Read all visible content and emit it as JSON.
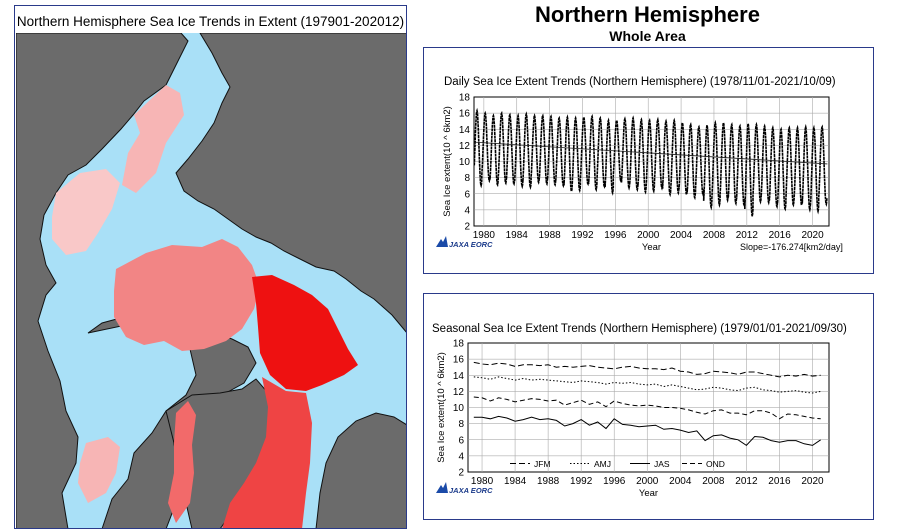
{
  "map": {
    "title": "Northern Hemisphere Sea Ice Trends in Extent (197901-202012)",
    "colors": {
      "ocean": "#a9e0f7",
      "land": "#6b6b6b",
      "trend_light": "#f7b5b5",
      "trend_medium": "#f28585",
      "trend_strong": "#ef4444",
      "trend_max": "#ee1111"
    }
  },
  "header": {
    "title": "Northern Hemisphere",
    "subtitle": "Whole Area"
  },
  "chart_data": [
    {
      "type": "line",
      "title": "Daily Sea Ice Extent Trends (Northern Hemisphere) (1978/11/01-2021/10/09)",
      "ylabel": "Sea Ice extent(10 ^ 6km2)",
      "xlabel": "Year",
      "ylim": [
        2,
        18
      ],
      "yticks": [
        "2",
        "4",
        "6",
        "8",
        "10",
        "12",
        "14",
        "16",
        "18"
      ],
      "xlim": [
        1978.8,
        2022.0
      ],
      "xticks": [
        "1980",
        "1984",
        "1988",
        "1992",
        "1996",
        "2000",
        "2004",
        "2008",
        "2012",
        "2016",
        "2020"
      ],
      "grid": true,
      "slope_label": "Slope=-176.274[km2/day]",
      "credit": "JAXA EORC",
      "annual_max": [
        [
          1979,
          16.3
        ],
        [
          1980,
          16.0
        ],
        [
          1981,
          15.7
        ],
        [
          1982,
          16.0
        ],
        [
          1983,
          15.8
        ],
        [
          1984,
          15.7
        ],
        [
          1985,
          15.9
        ],
        [
          1986,
          15.7
        ],
        [
          1987,
          15.7
        ],
        [
          1988,
          15.6
        ],
        [
          1989,
          15.4
        ],
        [
          1990,
          15.5
        ],
        [
          1991,
          15.4
        ],
        [
          1992,
          15.5
        ],
        [
          1993,
          15.6
        ],
        [
          1994,
          15.4
        ],
        [
          1995,
          15.1
        ],
        [
          1996,
          15.1
        ],
        [
          1997,
          15.3
        ],
        [
          1998,
          15.4
        ],
        [
          1999,
          15.2
        ],
        [
          2000,
          15.1
        ],
        [
          2001,
          15.2
        ],
        [
          2002,
          15.0
        ],
        [
          2003,
          15.1
        ],
        [
          2004,
          14.8
        ],
        [
          2005,
          14.6
        ],
        [
          2006,
          14.3
        ],
        [
          2007,
          14.5
        ],
        [
          2008,
          14.8
        ],
        [
          2009,
          14.8
        ],
        [
          2010,
          14.6
        ],
        [
          2011,
          14.4
        ],
        [
          2012,
          14.7
        ],
        [
          2013,
          14.6
        ],
        [
          2014,
          14.4
        ],
        [
          2015,
          14.2
        ],
        [
          2016,
          14.0
        ],
        [
          2017,
          14.2
        ],
        [
          2018,
          14.2
        ],
        [
          2019,
          14.3
        ],
        [
          2020,
          14.2
        ],
        [
          2021,
          14.3
        ]
      ],
      "annual_min": [
        [
          1979,
          7.0
        ],
        [
          1980,
          7.6
        ],
        [
          1981,
          7.1
        ],
        [
          1982,
          7.3
        ],
        [
          1983,
          7.2
        ],
        [
          1984,
          6.9
        ],
        [
          1985,
          6.8
        ],
        [
          1986,
          7.4
        ],
        [
          1987,
          7.2
        ],
        [
          1988,
          7.1
        ],
        [
          1989,
          7.0
        ],
        [
          1990,
          6.3
        ],
        [
          1991,
          6.4
        ],
        [
          1992,
          7.2
        ],
        [
          1993,
          6.5
        ],
        [
          1994,
          6.9
        ],
        [
          1995,
          6.1
        ],
        [
          1996,
          7.6
        ],
        [
          1997,
          6.7
        ],
        [
          1998,
          6.5
        ],
        [
          1999,
          6.2
        ],
        [
          2000,
          6.3
        ],
        [
          2001,
          6.7
        ],
        [
          2002,
          5.9
        ],
        [
          2003,
          6.1
        ],
        [
          2004,
          5.9
        ],
        [
          2005,
          5.5
        ],
        [
          2006,
          5.9
        ],
        [
          2007,
          4.3
        ],
        [
          2008,
          4.6
        ],
        [
          2009,
          5.2
        ],
        [
          2010,
          4.8
        ],
        [
          2011,
          4.6
        ],
        [
          2012,
          3.2
        ],
        [
          2013,
          5.0
        ],
        [
          2014,
          4.9
        ],
        [
          2015,
          4.4
        ],
        [
          2016,
          4.1
        ],
        [
          2017,
          4.6
        ],
        [
          2018,
          4.6
        ],
        [
          2019,
          4.0
        ],
        [
          2020,
          3.8
        ],
        [
          2021,
          4.7
        ]
      ],
      "trend_line": [
        [
          1978.8,
          12.4
        ],
        [
          2021.8,
          9.7
        ]
      ]
    },
    {
      "type": "line",
      "title": "Seasonal Sea Ice Extent Trends (Northern Hemisphere) (1979/01/01-2021/09/30)",
      "ylabel": "Sea Ice extent(10 ^ 6km2)",
      "xlabel": "Year",
      "ylim": [
        2,
        18
      ],
      "yticks": [
        "2",
        "4",
        "6",
        "8",
        "10",
        "12",
        "14",
        "16",
        "18"
      ],
      "xlim": [
        1978.3,
        2022.0
      ],
      "xticks": [
        "1980",
        "1984",
        "1988",
        "1992",
        "1996",
        "2000",
        "2004",
        "2008",
        "2012",
        "2016",
        "2020"
      ],
      "grid": true,
      "credit": "JAXA EORC",
      "x": [
        1979,
        1980,
        1981,
        1982,
        1983,
        1984,
        1985,
        1986,
        1987,
        1988,
        1989,
        1990,
        1991,
        1992,
        1993,
        1994,
        1995,
        1996,
        1997,
        1998,
        1999,
        2000,
        2001,
        2002,
        2003,
        2004,
        2005,
        2006,
        2007,
        2008,
        2009,
        2010,
        2011,
        2012,
        2013,
        2014,
        2015,
        2016,
        2017,
        2018,
        2019,
        2020,
        2021
      ],
      "series": [
        {
          "name": "JFM",
          "dash": "6,3",
          "values": [
            15.6,
            15.4,
            15.3,
            15.5,
            15.4,
            15.1,
            15.3,
            15.3,
            15.2,
            15.3,
            15.0,
            15.1,
            15.0,
            15.1,
            15.2,
            15.0,
            14.9,
            14.8,
            15.0,
            15.1,
            14.9,
            14.8,
            14.8,
            14.7,
            14.9,
            14.5,
            14.4,
            14.1,
            14.2,
            14.5,
            14.4,
            14.3,
            14.1,
            14.4,
            14.4,
            14.2,
            14.0,
            13.8,
            14.0,
            13.9,
            14.1,
            13.9,
            14.0
          ]
        },
        {
          "name": "AMJ",
          "dash": "1.5,2",
          "values": [
            13.8,
            13.7,
            13.5,
            13.8,
            13.6,
            13.4,
            13.6,
            13.4,
            13.5,
            13.4,
            13.3,
            13.2,
            13.1,
            13.3,
            13.2,
            13.1,
            12.9,
            13.1,
            13.0,
            13.1,
            12.9,
            12.8,
            12.9,
            12.6,
            12.8,
            12.6,
            12.4,
            12.2,
            12.3,
            12.5,
            12.4,
            12.2,
            12.1,
            12.4,
            12.5,
            12.2,
            12.1,
            11.9,
            12.0,
            12.1,
            11.9,
            11.8,
            12.0
          ]
        },
        {
          "name": "JAS",
          "dash": "",
          "values": [
            8.8,
            8.8,
            8.6,
            8.9,
            8.7,
            8.3,
            8.5,
            8.8,
            8.5,
            8.6,
            8.4,
            7.7,
            8.0,
            8.5,
            7.8,
            8.2,
            7.4,
            8.6,
            7.9,
            7.8,
            7.6,
            7.7,
            7.8,
            7.3,
            7.4,
            7.2,
            6.9,
            7.1,
            5.9,
            6.5,
            6.6,
            6.2,
            6.0,
            5.3,
            6.4,
            6.3,
            5.9,
            5.7,
            5.9,
            5.9,
            5.5,
            5.3,
            6.0
          ]
        },
        {
          "name": "OND",
          "dash": "5,3",
          "values": [
            11.3,
            11.2,
            10.8,
            11.2,
            11.0,
            10.7,
            10.9,
            11.1,
            11.0,
            10.8,
            10.9,
            10.3,
            10.6,
            10.9,
            10.4,
            10.7,
            10.1,
            10.8,
            10.5,
            10.3,
            10.2,
            10.3,
            10.2,
            10.0,
            10.0,
            9.9,
            9.7,
            9.4,
            9.2,
            9.6,
            9.7,
            9.3,
            9.3,
            9.1,
            9.6,
            9.6,
            9.3,
            8.6,
            9.2,
            9.1,
            8.9,
            8.7,
            8.6
          ]
        }
      ]
    }
  ]
}
